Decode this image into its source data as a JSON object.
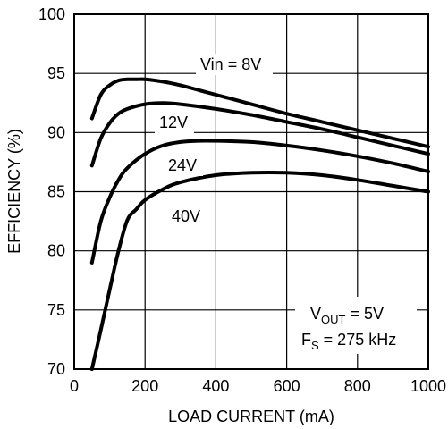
{
  "chart_data": {
    "type": "line",
    "xlabel": "LOAD CURRENT (mA)",
    "ylabel": "EFFICIENCY (%)",
    "xlim": [
      0,
      1000
    ],
    "ylim": [
      70,
      100
    ],
    "xticks": [
      0,
      200,
      400,
      600,
      800,
      1000
    ],
    "yticks": [
      70,
      75,
      80,
      85,
      90,
      95,
      100
    ],
    "grid": true,
    "series": [
      {
        "name": "Vin = 8V",
        "x": [
          50,
          75,
          100,
          125,
          150,
          175,
          200,
          250,
          300,
          350,
          400,
          500,
          600,
          700,
          800,
          900,
          1000
        ],
        "y": [
          91.2,
          93.2,
          94.0,
          94.4,
          94.5,
          94.5,
          94.5,
          94.3,
          94.0,
          93.6,
          93.2,
          92.4,
          91.6,
          90.9,
          90.2,
          89.5,
          88.8
        ]
      },
      {
        "name": "12V",
        "x": [
          50,
          75,
          100,
          125,
          150,
          200,
          250,
          300,
          400,
          500,
          600,
          700,
          800,
          900,
          1000
        ],
        "y": [
          87.2,
          89.5,
          90.8,
          91.6,
          92.0,
          92.4,
          92.5,
          92.4,
          92.0,
          91.5,
          90.9,
          90.3,
          89.6,
          88.9,
          88.2
        ]
      },
      {
        "name": "24V",
        "x": [
          50,
          75,
          100,
          125,
          150,
          200,
          250,
          300,
          350,
          400,
          500,
          600,
          700,
          800,
          900,
          1000
        ],
        "y": [
          79.0,
          82.5,
          84.5,
          86.0,
          87.0,
          88.2,
          88.9,
          89.2,
          89.3,
          89.3,
          89.2,
          88.9,
          88.5,
          88.0,
          87.4,
          86.7
        ]
      },
      {
        "name": "40V",
        "x": [
          50,
          75,
          100,
          125,
          150,
          175,
          200,
          250,
          300,
          400,
          500,
          600,
          700,
          800,
          900,
          1000
        ],
        "y": [
          70.0,
          73.3,
          76.7,
          80.0,
          82.6,
          83.5,
          84.3,
          85.2,
          85.8,
          86.4,
          86.6,
          86.6,
          86.4,
          86.0,
          85.5,
          85.0
        ]
      }
    ],
    "annotations": {
      "vout_prefix": "V",
      "vout_sub": "OUT",
      "vout_suffix": " = 5V",
      "fs_prefix": "F",
      "fs_sub": "S",
      "fs_suffix": " = 275 kHz"
    }
  }
}
